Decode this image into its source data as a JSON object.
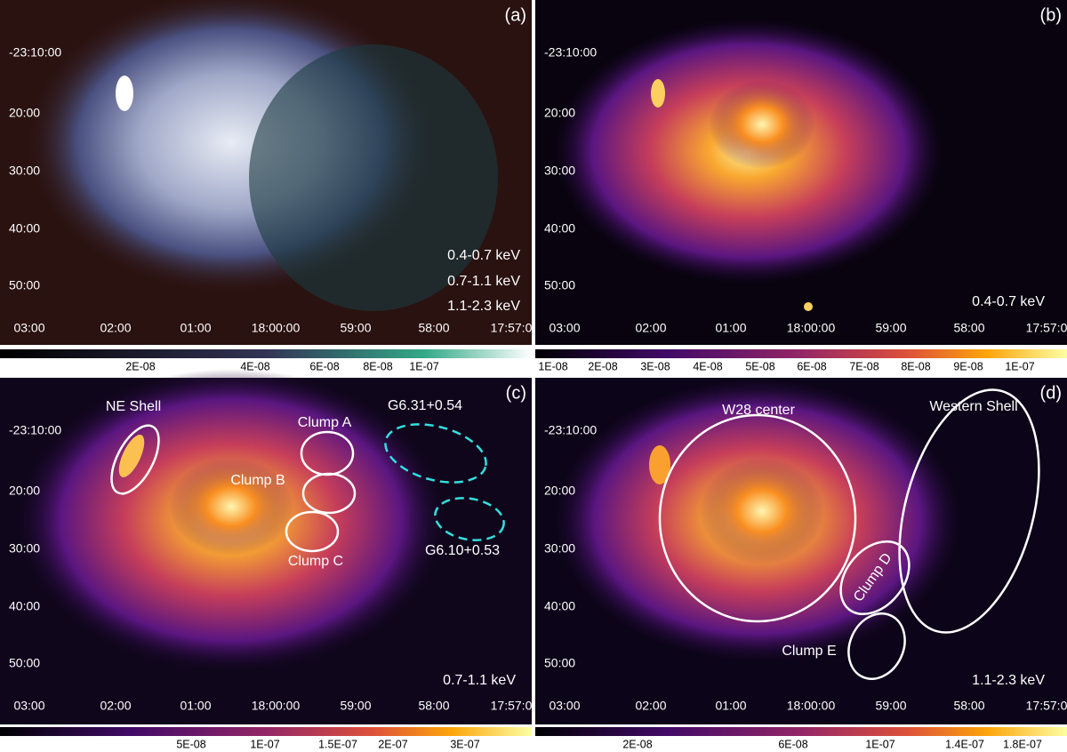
{
  "panels": [
    {
      "label": "(a)",
      "ra_ticks": [
        "03:00",
        "02:00",
        "01:00",
        "18:00:00",
        "59:00",
        "58:00",
        "17:57:0"
      ],
      "dec_ticks": [
        "-23:10:00",
        "20:00",
        "30:00",
        "40:00",
        "50:00"
      ],
      "colorbar_ticks": [
        "2E-08",
        "4E-08",
        "6E-08",
        "8E-08",
        "1E-07"
      ],
      "annotations": [
        {
          "text": "0.4-0.7 keV",
          "color": "#ff1a1a"
        },
        {
          "text": "0.7-1.1 keV",
          "color": "#22dd22"
        },
        {
          "text": "1.1-2.3 keV",
          "color": "#2233ff"
        }
      ]
    },
    {
      "label": "(b)",
      "ra_ticks": [
        "03:00",
        "02:00",
        "01:00",
        "18:00:00",
        "59:00",
        "58:00",
        "17:57:0"
      ],
      "dec_ticks": [
        "-23:10:00",
        "20:00",
        "30:00",
        "40:00",
        "50:00"
      ],
      "colorbar_ticks": [
        "1E-08",
        "2E-08",
        "3E-08",
        "4E-08",
        "5E-08",
        "6E-08",
        "7E-08",
        "8E-08",
        "9E-08",
        "1E-07"
      ],
      "annotations": [
        {
          "text": "0.4-0.7 keV",
          "color": "#ffffff"
        }
      ]
    },
    {
      "label": "(c)",
      "ra_ticks": [
        "03:00",
        "02:00",
        "01:00",
        "18:00:00",
        "59:00",
        "58:00",
        "17:57:0"
      ],
      "dec_ticks": [
        "-23:10:00",
        "20:00",
        "30:00",
        "40:00",
        "50:00"
      ],
      "colorbar_ticks": [
        "5E-08",
        "1E-07",
        "1.5E-07",
        "2E-07",
        "3E-07"
      ],
      "annotations": [
        {
          "text": "NE Shell",
          "color": "#ffffff"
        },
        {
          "text": "Clump A",
          "color": "#ffffff"
        },
        {
          "text": "Clump B",
          "color": "#ffffff"
        },
        {
          "text": "Clump C",
          "color": "#ffffff"
        },
        {
          "text": "G6.31+0.54",
          "color": "#33e0e0"
        },
        {
          "text": "G6.10+0.53",
          "color": "#33e0e0"
        },
        {
          "text": "0.7-1.1 keV",
          "color": "#ffffff"
        }
      ]
    },
    {
      "label": "(d)",
      "ra_ticks": [
        "03:00",
        "02:00",
        "01:00",
        "18:00:00",
        "59:00",
        "58:00",
        "17:57:0"
      ],
      "dec_ticks": [
        "-23:10:00",
        "20:00",
        "30:00",
        "40:00",
        "50:00"
      ],
      "colorbar_ticks": [
        "2E-08",
        "6E-08",
        "1E-07",
        "1.4E-07",
        "1.8E-07"
      ],
      "annotations": [
        {
          "text": "W28 center",
          "color": "#ffffff"
        },
        {
          "text": "Western Shell",
          "color": "#ffffff"
        },
        {
          "text": "Clump D",
          "color": "#ffffff"
        },
        {
          "text": "Clump E",
          "color": "#ffffff"
        },
        {
          "text": "1.1-2.3 keV",
          "color": "#ffffff"
        }
      ]
    }
  ]
}
